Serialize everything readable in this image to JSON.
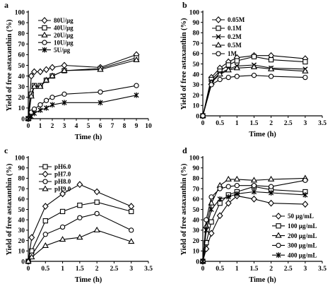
{
  "chart_data": [
    {
      "panel": "a",
      "type": "line",
      "xlabel": "Time (h)",
      "ylabel": "Yield of free astaxanthin (%)",
      "xlim": [
        0,
        10
      ],
      "ylim": [
        0,
        100
      ],
      "xticks": [
        0,
        1,
        2,
        3,
        4,
        5,
        6,
        7,
        8,
        9,
        10
      ],
      "yticks": [
        0,
        10,
        20,
        30,
        40,
        50,
        60,
        70,
        80,
        90,
        100
      ],
      "legend_position": "top-left",
      "series": [
        {
          "name": "80U/μg",
          "marker": "diamond",
          "x": [
            0,
            0.25,
            0.5,
            1,
            1.5,
            2,
            3,
            6,
            9
          ],
          "y": [
            0,
            40,
            44,
            44,
            46,
            48,
            50,
            48,
            60
          ]
        },
        {
          "name": "40U/μg",
          "marker": "square",
          "x": [
            0,
            0.25,
            0.5,
            1,
            1.5,
            2,
            3,
            6,
            9
          ],
          "y": [
            0,
            23,
            31,
            31,
            36,
            40,
            45,
            47,
            57
          ]
        },
        {
          "name": "20U/μg",
          "marker": "triangle",
          "x": [
            0,
            0.25,
            0.5,
            1,
            1.5,
            2,
            3,
            6,
            9
          ],
          "y": [
            0,
            21,
            30,
            30,
            36,
            40,
            45,
            46,
            55
          ]
        },
        {
          "name": "10U/μg",
          "marker": "circle",
          "x": [
            0,
            0.25,
            0.5,
            1,
            1.5,
            2,
            3,
            6,
            9
          ],
          "y": [
            0,
            6,
            9,
            13,
            17,
            20,
            23,
            25,
            31
          ]
        },
        {
          "name": "5U/μg",
          "marker": "star",
          "x": [
            0,
            0.25,
            0.5,
            1,
            1.5,
            2,
            3,
            6,
            9
          ],
          "y": [
            0,
            2,
            5,
            8,
            10,
            13,
            15,
            15,
            22
          ]
        }
      ]
    },
    {
      "panel": "b",
      "type": "line",
      "xlabel": "Time (h)",
      "ylabel": "Yield of free astaxanthin (%)",
      "xlim": [
        0,
        3.5
      ],
      "ylim": [
        0,
        100
      ],
      "xticks": [
        0,
        0.5,
        1,
        1.5,
        2,
        2.5,
        3,
        3.5
      ],
      "xticklabels": [
        "0",
        "0.5",
        "1",
        "1.5",
        "2",
        "2.5",
        "3",
        "3.5"
      ],
      "yticks": [
        0,
        10,
        20,
        30,
        40,
        50,
        60,
        70,
        80,
        90,
        100
      ],
      "legend_position": "top-left",
      "series": [
        {
          "name": "0.05M",
          "marker": "diamond",
          "x": [
            0,
            0.25,
            0.5,
            0.75,
            1,
            1.5,
            2,
            3
          ],
          "y": [
            0,
            37,
            46,
            52,
            56,
            58,
            58,
            55
          ]
        },
        {
          "name": "0.1M",
          "marker": "square",
          "x": [
            0,
            0.25,
            0.5,
            0.75,
            1,
            1.5,
            2,
            3
          ],
          "y": [
            0,
            35,
            43,
            49,
            53,
            57,
            54,
            52
          ]
        },
        {
          "name": "0.2M",
          "marker": "x",
          "x": [
            0,
            0.25,
            0.5,
            0.75,
            1,
            1.5,
            2,
            3
          ],
          "y": [
            0,
            33,
            41,
            45,
            48,
            49,
            46,
            45
          ]
        },
        {
          "name": "0.5M",
          "marker": "triangle",
          "x": [
            0,
            0.25,
            0.5,
            0.75,
            1,
            1.5,
            2,
            3
          ],
          "y": [
            0,
            32,
            40,
            44,
            46,
            47,
            45,
            43
          ]
        },
        {
          "name": "1M",
          "marker": "circle",
          "x": [
            0,
            0.25,
            0.5,
            0.75,
            1,
            1.5,
            2,
            3
          ],
          "y": [
            0,
            30,
            35,
            37,
            38,
            39,
            38,
            37
          ]
        }
      ]
    },
    {
      "panel": "c",
      "type": "line",
      "xlabel": "Time (h)",
      "ylabel": "Yield of free astaxanthin (%)",
      "xlim": [
        0,
        3.5
      ],
      "ylim": [
        0,
        100
      ],
      "xticks": [
        0,
        0.5,
        1,
        1.5,
        2,
        2.5,
        3,
        3.5
      ],
      "xticklabels": [
        "0",
        "0.5",
        "1",
        "1.5",
        "2",
        "2.5",
        "3",
        "3.5"
      ],
      "yticks": [
        0,
        10,
        20,
        30,
        40,
        50,
        60,
        70,
        80,
        90,
        100
      ],
      "legend_position": "top-left",
      "series": [
        {
          "name": "pH6.0",
          "marker": "square",
          "x": [
            0,
            0.1,
            0.5,
            1,
            1.5,
            2,
            3
          ],
          "y": [
            0,
            10,
            39,
            48,
            54,
            57,
            48
          ]
        },
        {
          "name": "pH7.0",
          "marker": "diamond",
          "x": [
            0,
            0.1,
            0.5,
            1,
            1.5,
            2,
            3
          ],
          "y": [
            0,
            23,
            53,
            65,
            74,
            67,
            53
          ]
        },
        {
          "name": "pH8.0",
          "marker": "circle",
          "x": [
            0,
            0.1,
            0.5,
            1,
            1.5,
            2,
            3
          ],
          "y": [
            0,
            6,
            26,
            33,
            42,
            46,
            30
          ]
        },
        {
          "name": "pH9.0",
          "marker": "triangle",
          "x": [
            0,
            0.1,
            0.5,
            1,
            1.5,
            2,
            3
          ],
          "y": [
            0,
            4,
            15,
            21,
            23,
            30,
            19
          ]
        }
      ]
    },
    {
      "panel": "d",
      "type": "line",
      "xlabel": "Time (h)",
      "ylabel": "Yield of free astaxanthin (%)",
      "xlim": [
        0,
        3.5
      ],
      "ylim": [
        0,
        100
      ],
      "xticks": [
        0,
        0.5,
        1,
        1.5,
        2,
        2.5,
        3,
        3.5
      ],
      "xticklabels": [
        "0",
        "0.5",
        "1",
        "1.5",
        "2",
        "2.5",
        "3",
        "3.5"
      ],
      "yticks": [
        0,
        10,
        20,
        30,
        40,
        50,
        60,
        70,
        80,
        90,
        100
      ],
      "legend_position": "bottom-right",
      "series": [
        {
          "name": "50 μg/mL",
          "marker": "diamond",
          "x": [
            0,
            0.1,
            0.25,
            0.5,
            0.75,
            1,
            1.5,
            2,
            3
          ],
          "y": [
            0,
            12,
            27,
            44,
            56,
            63,
            60,
            56,
            55
          ]
        },
        {
          "name": "100 μg/mL",
          "marker": "square",
          "x": [
            0,
            0.1,
            0.25,
            0.5,
            0.75,
            1,
            1.5,
            2,
            3
          ],
          "y": [
            0,
            18,
            38,
            56,
            64,
            67,
            72,
            69,
            67
          ]
        },
        {
          "name": "200 μg/mL",
          "marker": "triangle",
          "x": [
            0,
            0.1,
            0.25,
            0.5,
            0.75,
            1,
            1.5,
            2,
            3
          ],
          "y": [
            0,
            34,
            56,
            73,
            79,
            79,
            78,
            79,
            80
          ]
        },
        {
          "name": "300 μg/mL",
          "marker": "circle",
          "x": [
            0,
            0.1,
            0.25,
            0.5,
            0.75,
            1,
            1.5,
            2,
            3
          ],
          "y": [
            0,
            40,
            62,
            70,
            72,
            73,
            73,
            72,
            78
          ]
        },
        {
          "name": "400 μg/mL",
          "marker": "star",
          "x": [
            0,
            0.1,
            0.25,
            0.5,
            0.75,
            1,
            1.5,
            2,
            3
          ],
          "y": [
            0,
            30,
            50,
            60,
            62,
            65,
            67,
            66,
            64
          ]
        }
      ]
    }
  ]
}
